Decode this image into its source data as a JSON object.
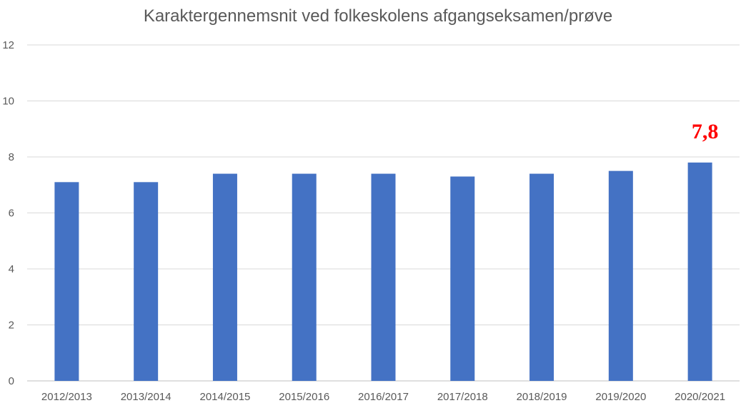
{
  "chart_data": {
    "type": "bar",
    "title": "Karaktergennemsnit ved folkeskolens afgangseksamen/prøve",
    "xlabel": "",
    "ylabel": "",
    "categories": [
      "2012/2013",
      "2013/2014",
      "2014/2015",
      "2015/2016",
      "2016/2017",
      "2017/2018",
      "2018/2019",
      "2019/2020",
      "2020/2021"
    ],
    "values": [
      7.1,
      7.1,
      7.4,
      7.4,
      7.4,
      7.3,
      7.4,
      7.5,
      7.8
    ],
    "ylim": [
      0,
      12
    ],
    "yticks": [
      0,
      2,
      4,
      6,
      8,
      10,
      12
    ],
    "grid": true,
    "bar_color": "#4472C4",
    "annotation": {
      "text": "7,8",
      "category": "2020/2021",
      "color": "#FF0000"
    }
  }
}
